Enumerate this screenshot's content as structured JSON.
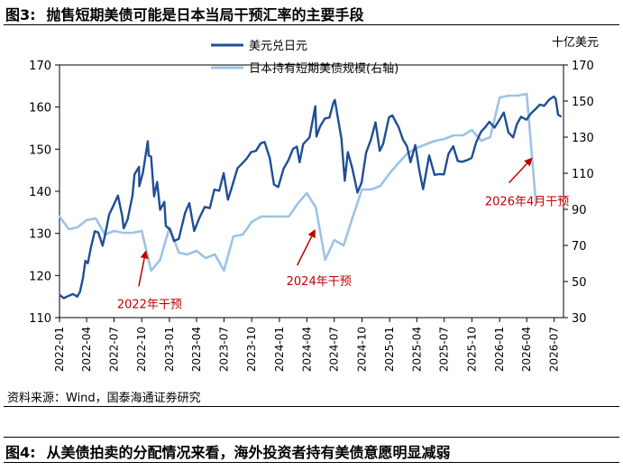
{
  "figure3": {
    "number": "图3:",
    "title": "抛售短期美债可能是日本当局干预汇率的主要手段"
  },
  "figure4": {
    "number": "图4:",
    "title": "从美债拍卖的分配情况来看，海外投资者持有美债意愿明显减弱"
  },
  "source": "资料来源：Wind，国泰海通证券研究",
  "colors": {
    "usdjpy": "#1f4e96",
    "holdings": "#9cc3e6",
    "annotation": "#c00000"
  },
  "chart_data": {
    "type": "line",
    "right_axis_unit": "十亿美元",
    "left_ylim": [
      110,
      170
    ],
    "left_yticks": [
      110,
      120,
      130,
      140,
      150,
      160,
      170
    ],
    "right_ylim": [
      30,
      170
    ],
    "right_yticks": [
      30,
      50,
      70,
      90,
      110,
      130,
      150,
      170
    ],
    "x_range": [
      "2022-01",
      "2026-08"
    ],
    "x_ticks": [
      "2022-01",
      "2022-04",
      "2022-07",
      "2022-10",
      "2023-01",
      "2023-04",
      "2023-07",
      "2023-10",
      "2024-01",
      "2024-04",
      "2024-07",
      "2024-10",
      "2025-01",
      "2025-04",
      "2025-07",
      "2025-10",
      "2026-01",
      "2026-04",
      "2026-07"
    ],
    "legend_position": "top-center",
    "series": [
      {
        "name": "美元兑日元",
        "axis": "left",
        "points": [
          [
            "2022-01-03",
            115.3
          ],
          [
            "2022-01-15",
            114.6
          ],
          [
            "2022-02-01",
            115.2
          ],
          [
            "2022-02-15",
            115.6
          ],
          [
            "2022-03-01",
            115.0
          ],
          [
            "2022-03-10",
            116.1
          ],
          [
            "2022-03-20",
            119.5
          ],
          [
            "2022-03-28",
            123.5
          ],
          [
            "2022-04-05",
            122.9
          ],
          [
            "2022-04-15",
            126.5
          ],
          [
            "2022-04-28",
            130.5
          ],
          [
            "2022-05-10",
            130.2
          ],
          [
            "2022-05-24",
            127.1
          ],
          [
            "2022-06-01",
            129.6
          ],
          [
            "2022-06-15",
            134.5
          ],
          [
            "2022-06-29",
            136.6
          ],
          [
            "2022-07-14",
            139.0
          ],
          [
            "2022-07-28",
            134.2
          ],
          [
            "2022-08-02",
            131.2
          ],
          [
            "2022-08-15",
            133.3
          ],
          [
            "2022-08-31",
            138.9
          ],
          [
            "2022-09-07",
            144.0
          ],
          [
            "2022-09-22",
            145.8
          ],
          [
            "2022-09-23",
            141.2
          ],
          [
            "2022-10-05",
            144.5
          ],
          [
            "2022-10-21",
            151.9
          ],
          [
            "2022-10-24",
            148.5
          ],
          [
            "2022-11-01",
            148.2
          ],
          [
            "2022-11-11",
            138.8
          ],
          [
            "2022-11-21",
            142.2
          ],
          [
            "2022-12-01",
            135.6
          ],
          [
            "2022-12-15",
            137.5
          ],
          [
            "2022-12-20",
            131.8
          ],
          [
            "2023-01-03",
            130.9
          ],
          [
            "2023-01-16",
            128.2
          ],
          [
            "2023-02-01",
            128.7
          ],
          [
            "2023-02-22",
            134.9
          ],
          [
            "2023-03-08",
            137.2
          ],
          [
            "2023-03-24",
            130.6
          ],
          [
            "2023-04-10",
            133.6
          ],
          [
            "2023-04-28",
            136.3
          ],
          [
            "2023-05-15",
            136.0
          ],
          [
            "2023-05-30",
            140.4
          ],
          [
            "2023-06-15",
            140.1
          ],
          [
            "2023-06-30",
            144.3
          ],
          [
            "2023-07-14",
            138.0
          ],
          [
            "2023-07-28",
            141.2
          ],
          [
            "2023-08-15",
            145.5
          ],
          [
            "2023-08-29",
            146.5
          ],
          [
            "2023-09-15",
            147.8
          ],
          [
            "2023-09-29",
            149.3
          ],
          [
            "2023-10-15",
            149.6
          ],
          [
            "2023-10-31",
            151.4
          ],
          [
            "2023-11-13",
            151.7
          ],
          [
            "2023-11-30",
            147.9
          ],
          [
            "2023-12-14",
            141.6
          ],
          [
            "2023-12-28",
            141.0
          ],
          [
            "2024-01-15",
            145.4
          ],
          [
            "2024-01-31",
            147.4
          ],
          [
            "2024-02-15",
            150.1
          ],
          [
            "2024-02-28",
            150.6
          ],
          [
            "2024-03-08",
            146.9
          ],
          [
            "2024-03-20",
            151.2
          ],
          [
            "2024-04-10",
            152.8
          ],
          [
            "2024-04-29",
            160.2
          ],
          [
            "2024-05-03",
            153.0
          ],
          [
            "2024-05-15",
            155.4
          ],
          [
            "2024-05-31",
            157.3
          ],
          [
            "2024-06-15",
            157.5
          ],
          [
            "2024-06-28",
            161.0
          ],
          [
            "2024-07-03",
            161.7
          ],
          [
            "2024-07-12",
            157.9
          ],
          [
            "2024-07-25",
            152.5
          ],
          [
            "2024-08-05",
            142.5
          ],
          [
            "2024-08-15",
            149.3
          ],
          [
            "2024-08-30",
            145.4
          ],
          [
            "2024-09-16",
            139.7
          ],
          [
            "2024-09-30",
            142.1
          ],
          [
            "2024-10-15",
            149.2
          ],
          [
            "2024-10-31",
            152.3
          ],
          [
            "2024-11-15",
            156.4
          ],
          [
            "2024-11-29",
            149.6
          ],
          [
            "2024-12-10",
            151.2
          ],
          [
            "2024-12-30",
            157.6
          ],
          [
            "2025-01-10",
            158.0
          ],
          [
            "2025-01-31",
            155.2
          ],
          [
            "2025-02-14",
            152.3
          ],
          [
            "2025-02-28",
            150.6
          ],
          [
            "2025-03-11",
            146.9
          ],
          [
            "2025-03-27",
            151.0
          ],
          [
            "2025-04-10",
            144.7
          ],
          [
            "2025-04-22",
            140.5
          ],
          [
            "2025-05-12",
            148.5
          ],
          [
            "2025-05-30",
            143.9
          ],
          [
            "2025-06-15",
            144.1
          ],
          [
            "2025-06-30",
            144.0
          ],
          [
            "2025-07-15",
            148.9
          ],
          [
            "2025-07-31",
            150.7
          ],
          [
            "2025-08-15",
            147.2
          ],
          [
            "2025-08-29",
            147.0
          ],
          [
            "2025-09-15",
            147.4
          ],
          [
            "2025-09-30",
            147.9
          ],
          [
            "2025-10-15",
            151.6
          ],
          [
            "2025-10-31",
            154.1
          ],
          [
            "2025-11-14",
            155.2
          ],
          [
            "2025-11-28",
            156.5
          ],
          [
            "2025-12-15",
            155.1
          ],
          [
            "2025-12-31",
            156.9
          ],
          [
            "2026-01-15",
            158.7
          ],
          [
            "2026-01-30",
            154.0
          ],
          [
            "2026-02-15",
            152.8
          ],
          [
            "2026-02-27",
            155.9
          ],
          [
            "2026-03-13",
            157.7
          ],
          [
            "2026-03-31",
            157.0
          ],
          [
            "2026-04-15",
            158.5
          ],
          [
            "2026-04-30",
            159.5
          ],
          [
            "2026-05-15",
            160.6
          ],
          [
            "2026-05-29",
            160.3
          ],
          [
            "2026-06-15",
            161.8
          ],
          [
            "2026-06-30",
            162.5
          ],
          [
            "2026-07-06",
            162.0
          ],
          [
            "2026-07-14",
            158.2
          ],
          [
            "2026-07-22",
            157.8
          ]
        ]
      },
      {
        "name": "日本持有短期美债规模(右轴)",
        "axis": "right",
        "points": [
          [
            "2022-01-01",
            86
          ],
          [
            "2022-02-01",
            79
          ],
          [
            "2022-03-01",
            80
          ],
          [
            "2022-04-01",
            84
          ],
          [
            "2022-05-01",
            85
          ],
          [
            "2022-06-01",
            76
          ],
          [
            "2022-07-01",
            78
          ],
          [
            "2022-08-01",
            77
          ],
          [
            "2022-09-01",
            77
          ],
          [
            "2022-10-01",
            78
          ],
          [
            "2022-11-01",
            56
          ],
          [
            "2022-12-01",
            62
          ],
          [
            "2023-01-01",
            80
          ],
          [
            "2023-02-01",
            66
          ],
          [
            "2023-03-01",
            65
          ],
          [
            "2023-04-01",
            67
          ],
          [
            "2023-05-01",
            63
          ],
          [
            "2023-06-01",
            65
          ],
          [
            "2023-07-01",
            56
          ],
          [
            "2023-08-01",
            75
          ],
          [
            "2023-09-01",
            76
          ],
          [
            "2023-10-01",
            83
          ],
          [
            "2023-11-01",
            86
          ],
          [
            "2023-12-01",
            86
          ],
          [
            "2024-01-01",
            86
          ],
          [
            "2024-02-01",
            86
          ],
          [
            "2024-03-01",
            93
          ],
          [
            "2024-04-01",
            99
          ],
          [
            "2024-05-01",
            91
          ],
          [
            "2024-06-01",
            62
          ],
          [
            "2024-07-01",
            73
          ],
          [
            "2024-08-01",
            70
          ],
          [
            "2024-09-01",
            86
          ],
          [
            "2024-10-01",
            101
          ],
          [
            "2024-11-01",
            101
          ],
          [
            "2024-12-01",
            103
          ],
          [
            "2025-01-01",
            110
          ],
          [
            "2025-02-01",
            116
          ],
          [
            "2025-03-01",
            121
          ],
          [
            "2025-04-01",
            124
          ],
          [
            "2025-05-01",
            126
          ],
          [
            "2025-06-01",
            128
          ],
          [
            "2025-07-01",
            129
          ],
          [
            "2025-08-01",
            131
          ],
          [
            "2025-09-01",
            131
          ],
          [
            "2025-10-01",
            134
          ],
          [
            "2025-11-01",
            128
          ],
          [
            "2025-12-01",
            130
          ],
          [
            "2026-01-01",
            152
          ],
          [
            "2026-02-01",
            153
          ],
          [
            "2026-03-01",
            153
          ],
          [
            "2026-04-01",
            154
          ],
          [
            "2026-05-01",
            94
          ]
        ]
      }
    ],
    "annotations": [
      {
        "text": "2022年干预",
        "date": "2022-10-15",
        "value": 126,
        "axis": "left"
      },
      {
        "text": "2024年干预",
        "date": "2024-04-29",
        "value": 131,
        "axis": "left"
      },
      {
        "text": "2026年4月干预",
        "date": "2026-04-20",
        "value": 148,
        "axis": "left"
      }
    ]
  }
}
